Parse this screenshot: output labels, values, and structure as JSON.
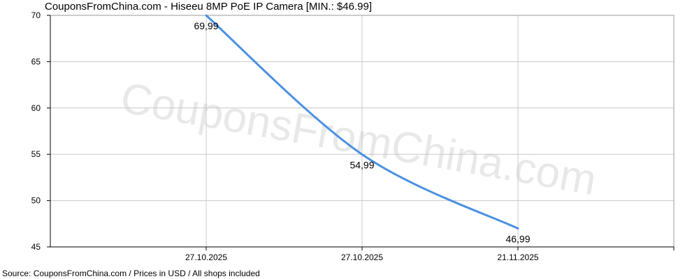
{
  "title": "CouponsFromChina.com - Hiseeu 8MP PoE IP Camera [MIN.: $46.99]",
  "footer": "Source: CouponsFromChina.com / Prices in USD / All shops included",
  "watermark": "CouponsFromChina.com",
  "colors": {
    "line": "#4a90e2",
    "grid": "#c8c8c8",
    "plot_border": "#9a9a9a",
    "axis": "#000000",
    "background": "#ffffff"
  },
  "chart_data": {
    "type": "line",
    "title": "CouponsFromChina.com - Hiseeu 8MP PoE IP Camera [MIN.: $46.99]",
    "x": [
      "27.10.2025",
      "27.10.2025",
      "21.11.2025"
    ],
    "series": [
      {
        "values": [
          69.99,
          54.99,
          46.99
        ],
        "labels": [
          "69,99",
          "54,99",
          "46,99"
        ]
      }
    ],
    "yticks": [
      45,
      50,
      55,
      60,
      65,
      70
    ],
    "ylim": [
      45,
      70
    ],
    "grid": true,
    "xlabel": "",
    "ylabel": ""
  }
}
